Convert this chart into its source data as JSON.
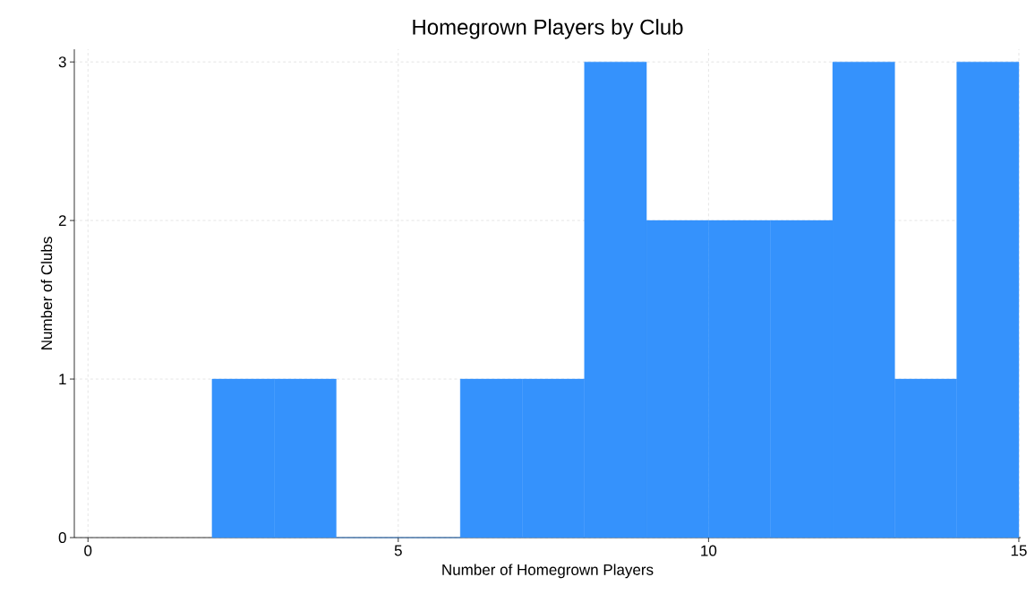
{
  "chart_data": {
    "type": "histogram",
    "title": "Homegrown Players by Club",
    "xlabel": "Number of Homegrown Players",
    "ylabel": "Number of Clubs",
    "bins": [
      2,
      3,
      4,
      5,
      6,
      7,
      8,
      9,
      10,
      11,
      12,
      13,
      14,
      15
    ],
    "values": [
      1,
      1,
      0,
      0,
      1,
      1,
      3,
      2,
      2,
      2,
      3,
      1,
      3
    ],
    "color": "#3592fc",
    "xlim": [
      -0.22,
      15.03
    ],
    "ylim": [
      0,
      3.08
    ],
    "xticks": [
      0,
      5,
      10,
      15
    ],
    "yticks": [
      0,
      1,
      2,
      3
    ],
    "grid": true
  }
}
